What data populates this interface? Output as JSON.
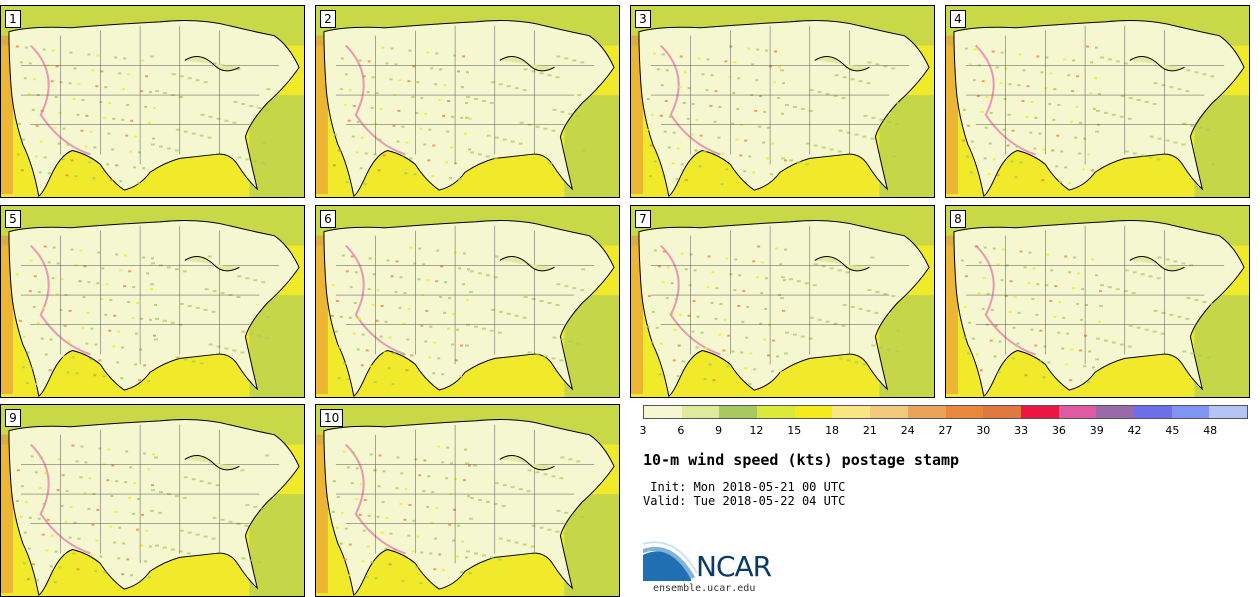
{
  "panels": [
    {
      "label": "1"
    },
    {
      "label": "2"
    },
    {
      "label": "3"
    },
    {
      "label": "4"
    },
    {
      "label": "5"
    },
    {
      "label": "6"
    },
    {
      "label": "7"
    },
    {
      "label": "8"
    },
    {
      "label": "9"
    },
    {
      "label": "10"
    }
  ],
  "colorbar": {
    "colors": [
      "#f4f7cf",
      "#dfea9c",
      "#a8c95f",
      "#dbe93a",
      "#f5ea1b",
      "#f8e682",
      "#f2ca7e",
      "#eba35b",
      "#e8883d",
      "#e07840",
      "#ea1541",
      "#df5aa2",
      "#9a6aa8",
      "#6b6fe8",
      "#7f95f1",
      "#b3c4f5"
    ],
    "ticks": [
      "3",
      "6",
      "9",
      "12",
      "15",
      "18",
      "21",
      "24",
      "27",
      "30",
      "33",
      "36",
      "39",
      "42",
      "45",
      "48"
    ]
  },
  "title": "10-m wind speed (kts) postage stamp",
  "init_line": " Init: Mon 2018-05-21 00 UTC",
  "valid_line": "Valid: Tue 2018-05-22 04 UTC",
  "logo": {
    "text": "NCAR",
    "site": "ensemble.ucar.edu"
  }
}
